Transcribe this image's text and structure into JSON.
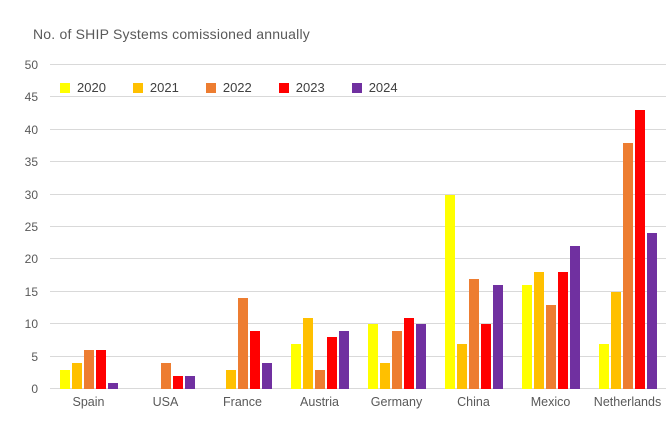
{
  "chart_data": {
    "type": "bar",
    "title": "No. of SHIP Systems comissioned annually",
    "categories": [
      "Spain",
      "USA",
      "France",
      "Austria",
      "Germany",
      "China",
      "Mexico",
      "Netherlands"
    ],
    "series": [
      {
        "name": "2020",
        "color": "#FFFF00",
        "values": [
          3,
          0,
          0,
          7,
          10,
          30,
          16,
          7
        ]
      },
      {
        "name": "2021",
        "color": "#FFC000",
        "values": [
          4,
          0,
          3,
          11,
          4,
          7,
          18,
          15
        ]
      },
      {
        "name": "2022",
        "color": "#ED7D31",
        "values": [
          6,
          4,
          14,
          3,
          9,
          17,
          13,
          38
        ]
      },
      {
        "name": "2023",
        "color": "#FF0000",
        "values": [
          6,
          2,
          9,
          8,
          11,
          10,
          18,
          43
        ]
      },
      {
        "name": "2024",
        "color": "#7030A0",
        "values": [
          1,
          2,
          4,
          9,
          10,
          16,
          22,
          24
        ]
      }
    ],
    "xlabel": "",
    "ylabel": "",
    "ylim": [
      0,
      50
    ],
    "yticks": [
      0,
      5,
      10,
      15,
      20,
      25,
      30,
      35,
      40,
      45,
      50
    ],
    "grid": true,
    "legend_position": "top-left-inside",
    "colors": {
      "text": "#595959",
      "gridline": "#D9D9D9",
      "background": "#FFFFFF"
    }
  }
}
